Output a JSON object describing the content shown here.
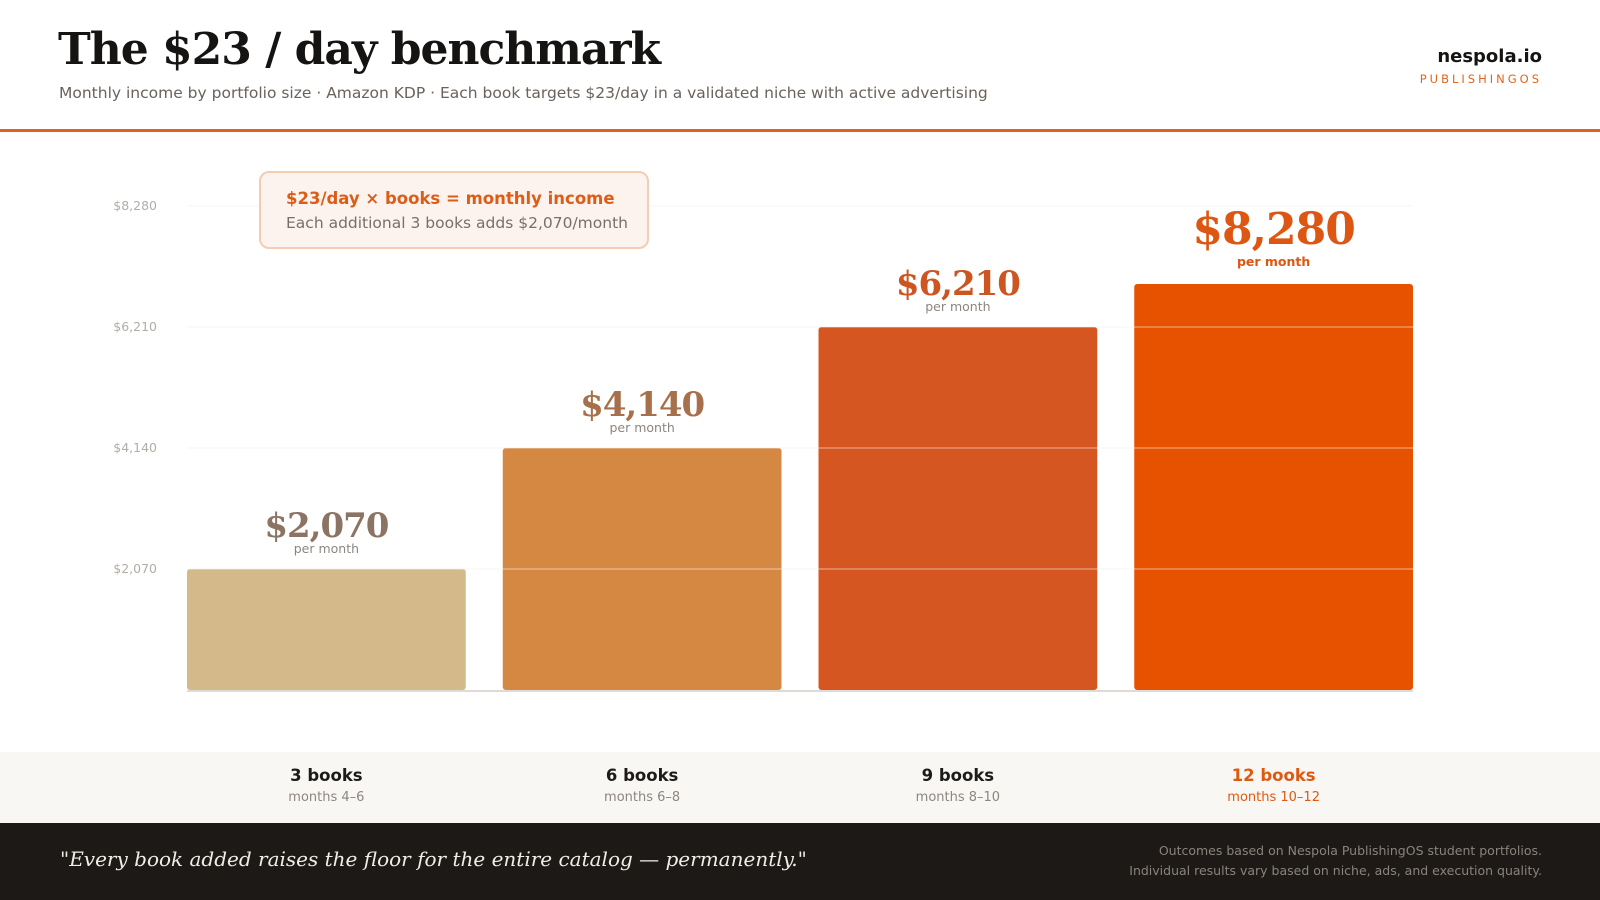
{
  "header": {
    "title": "The $23 / day benchmark",
    "subtitle": "Monthly income by portfolio size  ·  Amazon KDP  ·  Each book targets $23/day in a validated niche with active advertising",
    "brand_name": "nespola.io",
    "brand_tag": "PUBLISHINGOS"
  },
  "callout": {
    "title": "$23/day × books = monthly income",
    "subtitle": "Each additional 3 books adds $2,070/month"
  },
  "chart_data": {
    "type": "bar",
    "categories": [
      "3 books",
      "6 books",
      "9 books",
      "12 books"
    ],
    "category_subtitles": [
      "months 4–6",
      "months 6–8",
      "months 8–10",
      "months 10–12"
    ],
    "values": [
      2070,
      4140,
      6210,
      8280
    ],
    "value_labels": [
      "$2,070",
      "$4,140",
      "$6,210",
      "$8,280"
    ],
    "value_sublabel": "per month",
    "yticks": [
      2070,
      4140,
      6210,
      8280
    ],
    "ytick_labels": [
      "$2,070",
      "$4,140",
      "$6,210",
      "$8,280"
    ],
    "bar_colors": [
      "#d4b98b",
      "#d48842",
      "#d65621",
      "#e65200"
    ],
    "value_label_colors": [
      "#8b7463",
      "#a8704a",
      "#cc5522",
      "#dd5612"
    ],
    "highlight_index": 3,
    "grid": true,
    "legend": "none"
  },
  "footer": {
    "quote": "\"Every book added raises the floor for the entire catalog — permanently.\"",
    "disclaimer_line1": "Outcomes based on Nespola PublishingOS student portfolios.",
    "disclaimer_line2": "Individual results vary based on niche, ads, and execution quality."
  }
}
